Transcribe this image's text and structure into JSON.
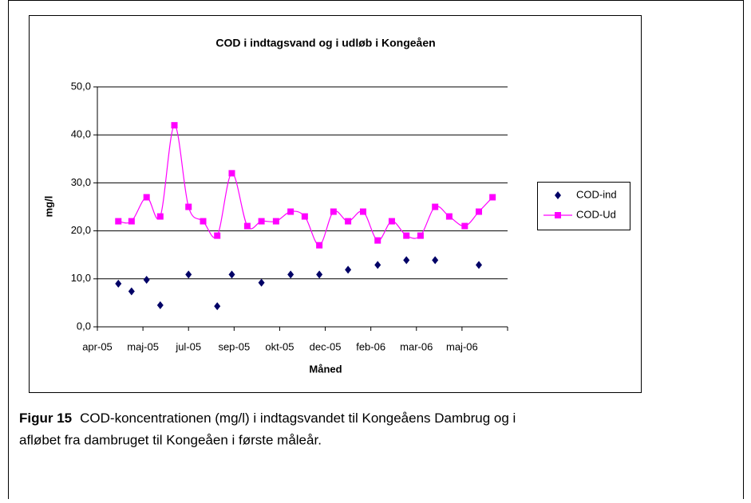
{
  "chart_data": {
    "type": "line",
    "title": "COD i indtagsvand og i udløb i Kongeåen",
    "x_label": "Måned",
    "y_label": "mg/l",
    "x": [
      0.46,
      0.75,
      1.08,
      1.38,
      1.69,
      2.0,
      2.32,
      2.63,
      2.95,
      3.29,
      3.6,
      3.92,
      4.24,
      4.55,
      4.87,
      5.18,
      5.5,
      5.83,
      6.15,
      6.46,
      6.78,
      7.09,
      7.41,
      7.72,
      8.06,
      8.37,
      8.67
    ],
    "series": [
      {
        "name": "COD-ind",
        "color": "#000066",
        "line": false,
        "values": [
          9,
          7.4,
          9.8,
          4.5,
          null,
          10.9,
          null,
          4.3,
          10.9,
          null,
          9.2,
          null,
          10.9,
          null,
          10.9,
          null,
          11.9,
          null,
          12.9,
          null,
          13.9,
          null,
          13.9,
          null,
          null,
          12.9,
          null
        ]
      },
      {
        "name": "COD-Ud",
        "color": "#ff00ff",
        "line": true,
        "values": [
          22,
          22,
          27,
          23,
          42,
          25,
          22,
          19,
          32,
          21,
          22,
          22,
          24,
          23,
          17,
          24,
          22,
          24,
          18,
          22,
          19,
          19,
          25,
          23,
          21,
          24,
          27
        ]
      }
    ],
    "xlim": [
      0,
      9
    ],
    "xticks": [
      {
        "value": 0,
        "label": "apr-05"
      },
      {
        "value": 1,
        "label": "maj-05"
      },
      {
        "value": 2,
        "label": "jul-05"
      },
      {
        "value": 3,
        "label": "sep-05"
      },
      {
        "value": 4,
        "label": "okt-05"
      },
      {
        "value": 5,
        "label": "dec-05"
      },
      {
        "value": 6,
        "label": "feb-06"
      },
      {
        "value": 7,
        "label": "mar-06"
      },
      {
        "value": 8,
        "label": "maj-06"
      },
      {
        "value": 9,
        "label": "maj-06"
      }
    ],
    "ylim": [
      0,
      50
    ],
    "yticks": [
      {
        "value": 0,
        "label": "0,0"
      },
      {
        "value": 10,
        "label": "10,0"
      },
      {
        "value": 20,
        "label": "20,0"
      },
      {
        "value": 30,
        "label": "30,0"
      },
      {
        "value": 40,
        "label": "40,0"
      },
      {
        "value": 50,
        "label": "50,0"
      }
    ],
    "grid": true,
    "legend": "right"
  },
  "caption": {
    "label": "Figur 15",
    "lines": [
      "COD-koncentrationen (mg/l) i indtagsvandet til Kongeåens Dambrug og i",
      "afløbet fra dambruget til Kongeåen i første måleår."
    ]
  }
}
